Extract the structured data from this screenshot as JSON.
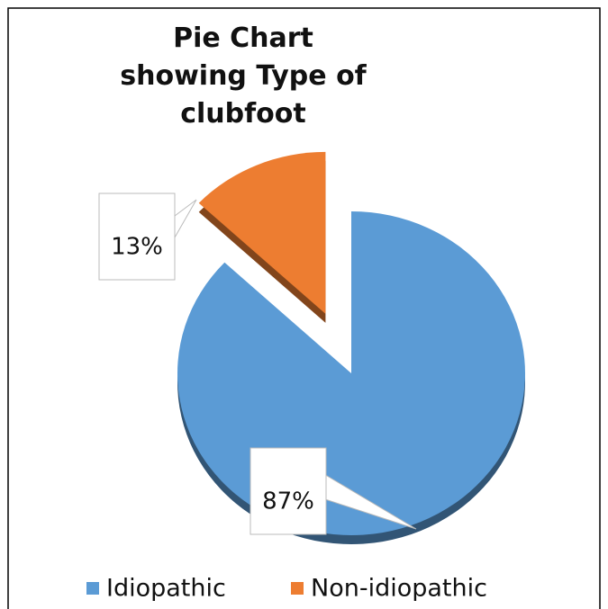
{
  "chart_data": {
    "type": "pie",
    "title": "Pie Chart showing Type of clubfoot",
    "categories": [
      "Idiopathic",
      "Non-idiopathic"
    ],
    "values": [
      87,
      13
    ],
    "value_labels": [
      "87%",
      "13%"
    ],
    "colors": [
      "#5b9bd5",
      "#ed7d31"
    ],
    "legend": "bottom"
  }
}
